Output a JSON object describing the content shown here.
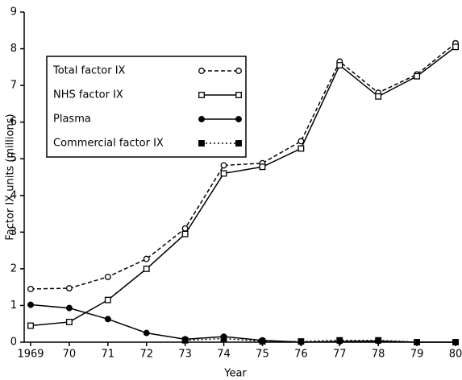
{
  "chart_data": {
    "type": "line",
    "xlabel": "Year",
    "ylabel": "Factor IX units (millions)",
    "categories": [
      "1969",
      "70",
      "71",
      "72",
      "73",
      "74",
      "75",
      "76",
      "77",
      "78",
      "79",
      "80"
    ],
    "ylim": [
      0,
      9
    ],
    "yticks": [
      0,
      1,
      2,
      3,
      4,
      5,
      6,
      7,
      8,
      9
    ],
    "legend": "upper left",
    "series": [
      {
        "name": "Total factor IX",
        "color": "#000000",
        "dash": "dashed",
        "marker": "open-circle",
        "values": [
          1.45,
          1.47,
          1.78,
          2.27,
          3.1,
          4.82,
          4.88,
          5.48,
          7.65,
          6.8,
          7.3,
          8.15
        ]
      },
      {
        "name": "NHS factor IX",
        "color": "#000000",
        "dash": "solid",
        "marker": "open-square",
        "values": [
          0.45,
          0.55,
          1.15,
          2.0,
          2.95,
          4.6,
          4.78,
          5.28,
          7.55,
          6.7,
          7.25,
          8.05
        ]
      },
      {
        "name": "Plasma",
        "color": "#000000",
        "dash": "solid",
        "marker": "filled-circle",
        "values": [
          1.02,
          0.93,
          0.63,
          0.25,
          0.08,
          0.15,
          0.05,
          0.0,
          0.02,
          0.03,
          0.0,
          0.0
        ]
      },
      {
        "name": "Commercial factor IX",
        "color": "#000000",
        "dash": "dotted",
        "marker": "filled-square",
        "values": [
          null,
          null,
          null,
          null,
          0.05,
          0.1,
          0.02,
          0.02,
          0.05,
          0.05,
          0.0,
          0.0
        ]
      }
    ]
  }
}
